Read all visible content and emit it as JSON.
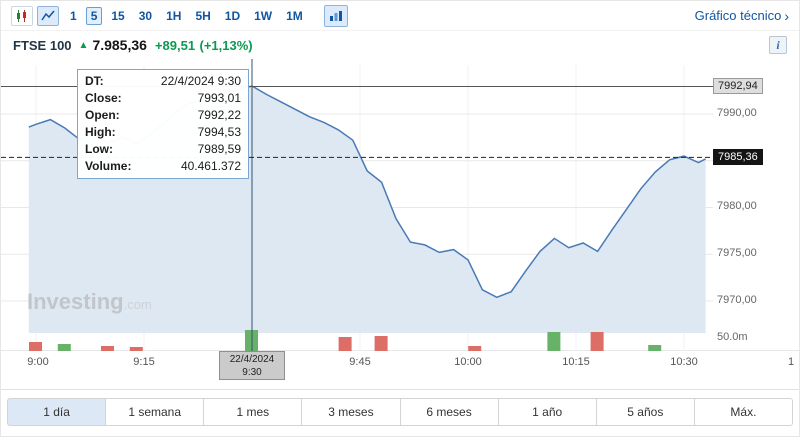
{
  "toolbar": {
    "timeframes": [
      "1",
      "5",
      "15",
      "30",
      "1H",
      "5H",
      "1D",
      "1W",
      "1M"
    ],
    "active_timeframe": "5",
    "technical_link": "Gráfico técnico",
    "chevron": "›"
  },
  "header": {
    "symbol": "FTSE 100",
    "arrow": "▲",
    "price": "7.985,36",
    "change": "+89,51",
    "change_percent": "(+1,13%)",
    "info": "i"
  },
  "tooltip": {
    "rows": [
      {
        "label": "DT:",
        "value": "22/4/2024 9:30"
      },
      {
        "label": "Close:",
        "value": "7993,01"
      },
      {
        "label": "Open:",
        "value": "7992,22"
      },
      {
        "label": "High:",
        "value": "7994,53"
      },
      {
        "label": "Low:",
        "value": "7989,59"
      },
      {
        "label": "Volume:",
        "value": "40.461.372"
      }
    ]
  },
  "axis": {
    "crosshair_label": "7992,94",
    "last_price_label": "7985,36",
    "y_labels": [
      "7990,00",
      "7980,00",
      "7975,00",
      "7970,00"
    ],
    "volume_label": "50.0m",
    "x_labels": [
      "9:00",
      "9:15",
      "9:45",
      "10:00",
      "10:15",
      "10:30",
      "1"
    ],
    "date_box": {
      "line1": "22/4/2024",
      "line2": "9:30"
    }
  },
  "watermark": {
    "main": "Investing",
    "suffix": ".com"
  },
  "tabs": {
    "items": [
      "1 día",
      "1 semana",
      "1 mes",
      "3 meses",
      "6 meses",
      "1 año",
      "5 años",
      "Máx."
    ],
    "active": "1 día"
  },
  "colors": {
    "accent_blue": "#1256a0",
    "green_text": "#0b9a50",
    "line": "#4a7ab5",
    "area_fill": "#dde8f2",
    "volume_green": "#67b168",
    "volume_red": "#dd6e66",
    "crosshair": "#33536f",
    "grid": "#e8e8e8"
  },
  "chart_data": {
    "type": "area",
    "title": "FTSE 100 intraday (5 min)",
    "x_unit": "minutes_after_9:00",
    "ylim": [
      7967,
      7995
    ],
    "y_gridlines": [
      7990,
      7985,
      7980,
      7975,
      7970
    ],
    "x_gridlines_minutes": [
      0,
      15,
      30,
      45,
      60,
      75,
      90
    ],
    "crosshair": {
      "minute": 30,
      "price": 7992.94
    },
    "last_price": 7985.36,
    "series": [
      {
        "name": "FTSE 100",
        "points": [
          [
            -1,
            7988.6
          ],
          [
            0,
            7988.9
          ],
          [
            2,
            7989.4
          ],
          [
            4,
            7988.5
          ],
          [
            6,
            7987.3
          ],
          [
            8,
            7987.9
          ],
          [
            10,
            7986.9
          ],
          [
            12,
            7987.5
          ],
          [
            14,
            7986.8
          ],
          [
            15,
            7987.3
          ],
          [
            17,
            7988.5
          ],
          [
            19,
            7989.9
          ],
          [
            21,
            7991.0
          ],
          [
            24,
            7991.9
          ],
          [
            27,
            7992.4
          ],
          [
            30,
            7993.0
          ],
          [
            32,
            7992.1
          ],
          [
            34,
            7991.3
          ],
          [
            36,
            7990.5
          ],
          [
            38,
            7989.7
          ],
          [
            40,
            7989.1
          ],
          [
            42,
            7988.3
          ],
          [
            44,
            7987.2
          ],
          [
            46,
            7983.9
          ],
          [
            48,
            7982.7
          ],
          [
            50,
            7978.8
          ],
          [
            52,
            7976.3
          ],
          [
            54,
            7976.0
          ],
          [
            56,
            7975.2
          ],
          [
            58,
            7975.5
          ],
          [
            60,
            7974.4
          ],
          [
            62,
            7971.2
          ],
          [
            64,
            7970.4
          ],
          [
            66,
            7971.0
          ],
          [
            68,
            7973.2
          ],
          [
            70,
            7975.3
          ],
          [
            72,
            7976.7
          ],
          [
            74,
            7975.7
          ],
          [
            76,
            7976.2
          ],
          [
            78,
            7975.3
          ],
          [
            80,
            7977.6
          ],
          [
            82,
            7979.8
          ],
          [
            84,
            7982.0
          ],
          [
            86,
            7983.8
          ],
          [
            88,
            7985.1
          ],
          [
            90,
            7985.5
          ],
          [
            92,
            7984.8
          ],
          [
            93,
            7985.2
          ]
        ]
      }
    ],
    "volume_bars": [
      {
        "m": 0,
        "h": 9,
        "c": "red"
      },
      {
        "m": 4,
        "h": 7,
        "c": "green"
      },
      {
        "m": 10,
        "h": 5,
        "c": "red"
      },
      {
        "m": 14,
        "h": 4,
        "c": "red"
      },
      {
        "m": 30,
        "h": 21,
        "c": "green"
      },
      {
        "m": 43,
        "h": 14,
        "c": "red"
      },
      {
        "m": 48,
        "h": 15,
        "c": "red"
      },
      {
        "m": 61,
        "h": 5,
        "c": "red"
      },
      {
        "m": 72,
        "h": 19,
        "c": "green"
      },
      {
        "m": 78,
        "h": 19,
        "c": "red"
      },
      {
        "m": 86,
        "h": 6,
        "c": "green"
      }
    ]
  }
}
